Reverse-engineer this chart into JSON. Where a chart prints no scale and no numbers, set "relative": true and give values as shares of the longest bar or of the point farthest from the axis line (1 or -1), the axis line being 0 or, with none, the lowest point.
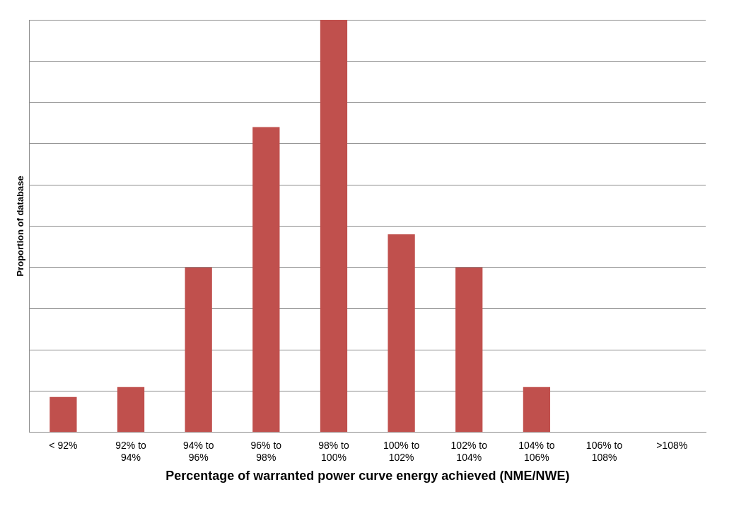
{
  "chart_data": {
    "type": "bar",
    "relative": true,
    "xlabel": "Percentage of warranted power curve energy achieved (NME/NWE)",
    "ylabel": "Proportion of database",
    "categories": [
      "< 92%",
      "92% to 94%",
      "94% to 96%",
      "96% to 98%",
      "98% to 100%",
      "100% to 102%",
      "102% to 104%",
      "104% to 106%",
      "106% to 108%",
      ">108%"
    ],
    "values": [
      0.086,
      0.11,
      0.4,
      0.74,
      1,
      0.48,
      0.4,
      0.11,
      0,
      0
    ],
    "color": "#c0504d",
    "grid": "y",
    "legend": false
  }
}
